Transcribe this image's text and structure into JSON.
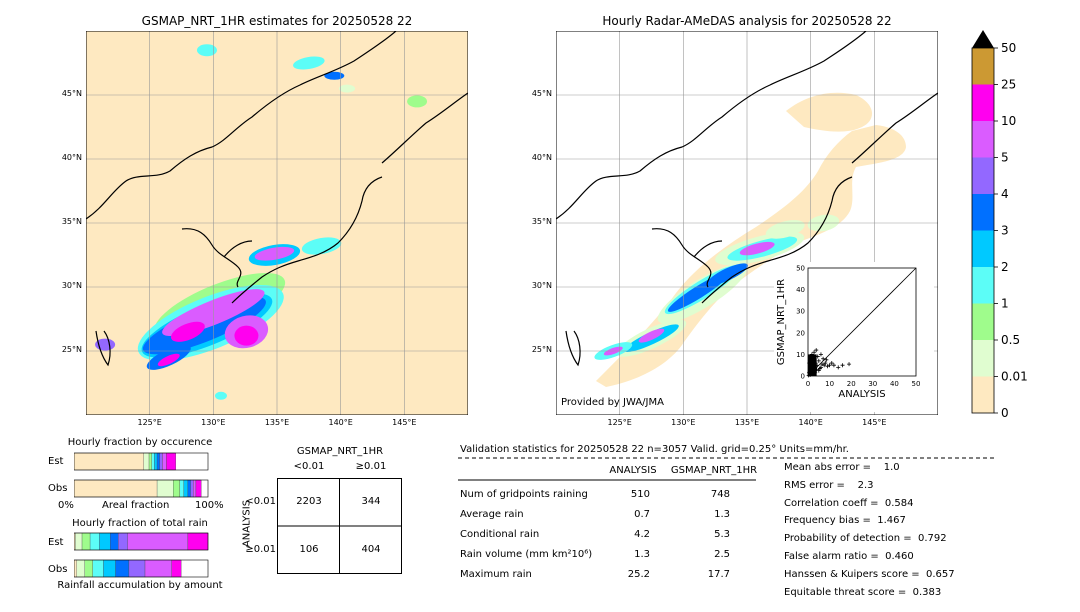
{
  "maps": {
    "left_title": "GSMAP_NRT_1HR estimates for 20250528 22",
    "right_title": "Hourly Radar-AMeDAS analysis for 20250528 22",
    "lat_labels": [
      "45°N",
      "40°N",
      "35°N",
      "30°N",
      "25°N"
    ],
    "lon_labels": [
      "125°E",
      "130°E",
      "135°E",
      "140°E",
      "145°E"
    ],
    "provided_by": "Provided by JWA/JMA"
  },
  "colorbar": {
    "labels": [
      "0",
      "0.01",
      "0.5",
      "1",
      "2",
      "3",
      "4",
      "5",
      "10",
      "25",
      "50"
    ],
    "colors": [
      "#fee9c1",
      "#e0fdd0",
      "#9ffc8c",
      "#5cfdf7",
      "#00c9ff",
      "#0070ff",
      "#9368ff",
      "#da5cff",
      "#ff00ef",
      "#cc9933"
    ],
    "extend_color": "#000000"
  },
  "scatter": {
    "xlabel": "ANALYSIS",
    "ylabel": "GSMAP_NRT_1HR",
    "ticks": [
      "0",
      "10",
      "20",
      "30",
      "40",
      "50"
    ],
    "xlim": [
      0,
      50
    ],
    "ylim": [
      0,
      50
    ]
  },
  "fraction_occurrence": {
    "title": "Hourly fraction by occurence",
    "row_est": "Est",
    "row_obs": "Obs",
    "axis_left": "0%",
    "axis_mid": "Areal fraction",
    "axis_right": "100%"
  },
  "fraction_total": {
    "title": "Hourly fraction of total rain",
    "row_est": "Est",
    "row_obs": "Obs",
    "caption": "Rainfall accumulation by amount"
  },
  "contingency": {
    "title": "GSMAP_NRT_1HR",
    "col_lt": "<0.01",
    "col_ge": "≥0.01",
    "side_label": "ANALYSIS",
    "row_lt": "<0.01",
    "row_ge": "≥0.01",
    "a": "2203",
    "b": "344",
    "c": "106",
    "d": "404"
  },
  "validation": {
    "header": "Validation statistics for 20250528 22  n=3057 Valid. grid=0.25° Units=mm/hr.",
    "col_analysis": "ANALYSIS",
    "col_gsmap": "GSMAP_NRT_1HR",
    "rows": [
      {
        "label": "Num of gridpoints raining",
        "analysis": "510",
        "gsmap": "748"
      },
      {
        "label": "Average rain",
        "analysis": "0.7",
        "gsmap": "1.3"
      },
      {
        "label": "Conditional rain",
        "analysis": "4.2",
        "gsmap": "5.3"
      },
      {
        "label": "Rain volume (mm km²10⁶)",
        "analysis": "1.3",
        "gsmap": "2.5"
      },
      {
        "label": "Maximum rain",
        "analysis": "25.2",
        "gsmap": "17.7"
      }
    ],
    "scores": [
      "Mean abs error =    1.0",
      "RMS error =    2.3",
      "Correlation coeff =  0.584",
      "Frequency bias =  1.467",
      "Probability of detection =  0.792",
      "False alarm ratio =  0.460",
      "Hanssen & Kuipers score =  0.657",
      "Equitable threat score =  0.383"
    ]
  },
  "chart_data": [
    {
      "type": "heatmap",
      "title": "GSMAP_NRT_1HR estimates for 20250528 22",
      "lon_range": [
        120,
        150
      ],
      "lat_range": [
        20,
        50
      ],
      "lon_ticks": [
        125,
        130,
        135,
        140,
        145
      ],
      "lat_ticks": [
        25,
        30,
        35,
        40,
        45
      ],
      "levels": [
        0,
        0.01,
        0.5,
        1,
        2,
        3,
        4,
        5,
        10,
        25,
        50
      ]
    },
    {
      "type": "heatmap",
      "title": "Hourly Radar-AMeDAS analysis for 20250528 22",
      "lon_range": [
        120,
        150
      ],
      "lat_range": [
        20,
        50
      ],
      "lon_ticks": [
        125,
        130,
        135,
        140,
        145
      ],
      "lat_ticks": [
        25,
        30,
        35,
        40,
        45
      ],
      "levels": [
        0,
        0.01,
        0.5,
        1,
        2,
        3,
        4,
        5,
        10,
        25,
        50
      ]
    },
    {
      "type": "scatter",
      "xlabel": "ANALYSIS",
      "ylabel": "GSMAP_NRT_1HR",
      "xlim": [
        0,
        50
      ],
      "ylim": [
        0,
        50
      ],
      "points": [
        [
          0.5,
          1.5
        ],
        [
          1,
          0.5
        ],
        [
          1.5,
          3
        ],
        [
          2,
          1
        ],
        [
          2.5,
          4
        ],
        [
          3,
          2
        ],
        [
          3.5,
          6
        ],
        [
          4,
          3
        ],
        [
          5,
          2.5
        ],
        [
          5,
          7
        ],
        [
          6,
          4
        ],
        [
          6.5,
          5.5
        ],
        [
          7,
          8
        ],
        [
          7.5,
          5
        ],
        [
          8,
          6
        ],
        [
          9,
          4.5
        ],
        [
          10,
          5
        ],
        [
          11,
          6
        ],
        [
          12,
          5
        ],
        [
          14,
          4
        ],
        [
          16,
          5
        ],
        [
          19,
          5.5
        ],
        [
          0.3,
          0.3
        ],
        [
          0.8,
          2.2
        ],
        [
          1.2,
          5
        ],
        [
          2.2,
          2.5
        ],
        [
          3,
          8
        ],
        [
          4.5,
          9
        ],
        [
          1.8,
          10
        ],
        [
          0.6,
          6
        ],
        [
          2.8,
          11
        ],
        [
          5.5,
          3.5
        ],
        [
          3.3,
          1.5
        ],
        [
          1.1,
          3.8
        ],
        [
          2.6,
          6.5
        ],
        [
          4.2,
          4.8
        ],
        [
          0.9,
          8.5
        ],
        [
          6,
          10
        ],
        [
          8.5,
          7.5
        ],
        [
          3.8,
          12
        ]
      ]
    },
    {
      "type": "bar",
      "title": "Hourly fraction by occurence",
      "series": [
        {
          "name": "Est",
          "values": [
            0.52,
            0.04,
            0.02,
            0.02,
            0.02,
            0.02,
            0.02,
            0.03,
            0.07
          ]
        },
        {
          "name": "Obs",
          "values": [
            0.62,
            0.12,
            0.05,
            0.03,
            0.03,
            0.02,
            0.02,
            0.02,
            0.04
          ]
        }
      ]
    },
    {
      "type": "bar",
      "title": "Hourly fraction of total rain",
      "series": [
        {
          "name": "Est",
          "values": [
            0.01,
            0.05,
            0.06,
            0.07,
            0.08,
            0.06,
            0.07,
            0.45,
            0.15
          ]
        },
        {
          "name": "Obs",
          "values": [
            0.02,
            0.06,
            0.06,
            0.08,
            0.09,
            0.1,
            0.12,
            0.2,
            0.07
          ]
        }
      ]
    }
  ]
}
